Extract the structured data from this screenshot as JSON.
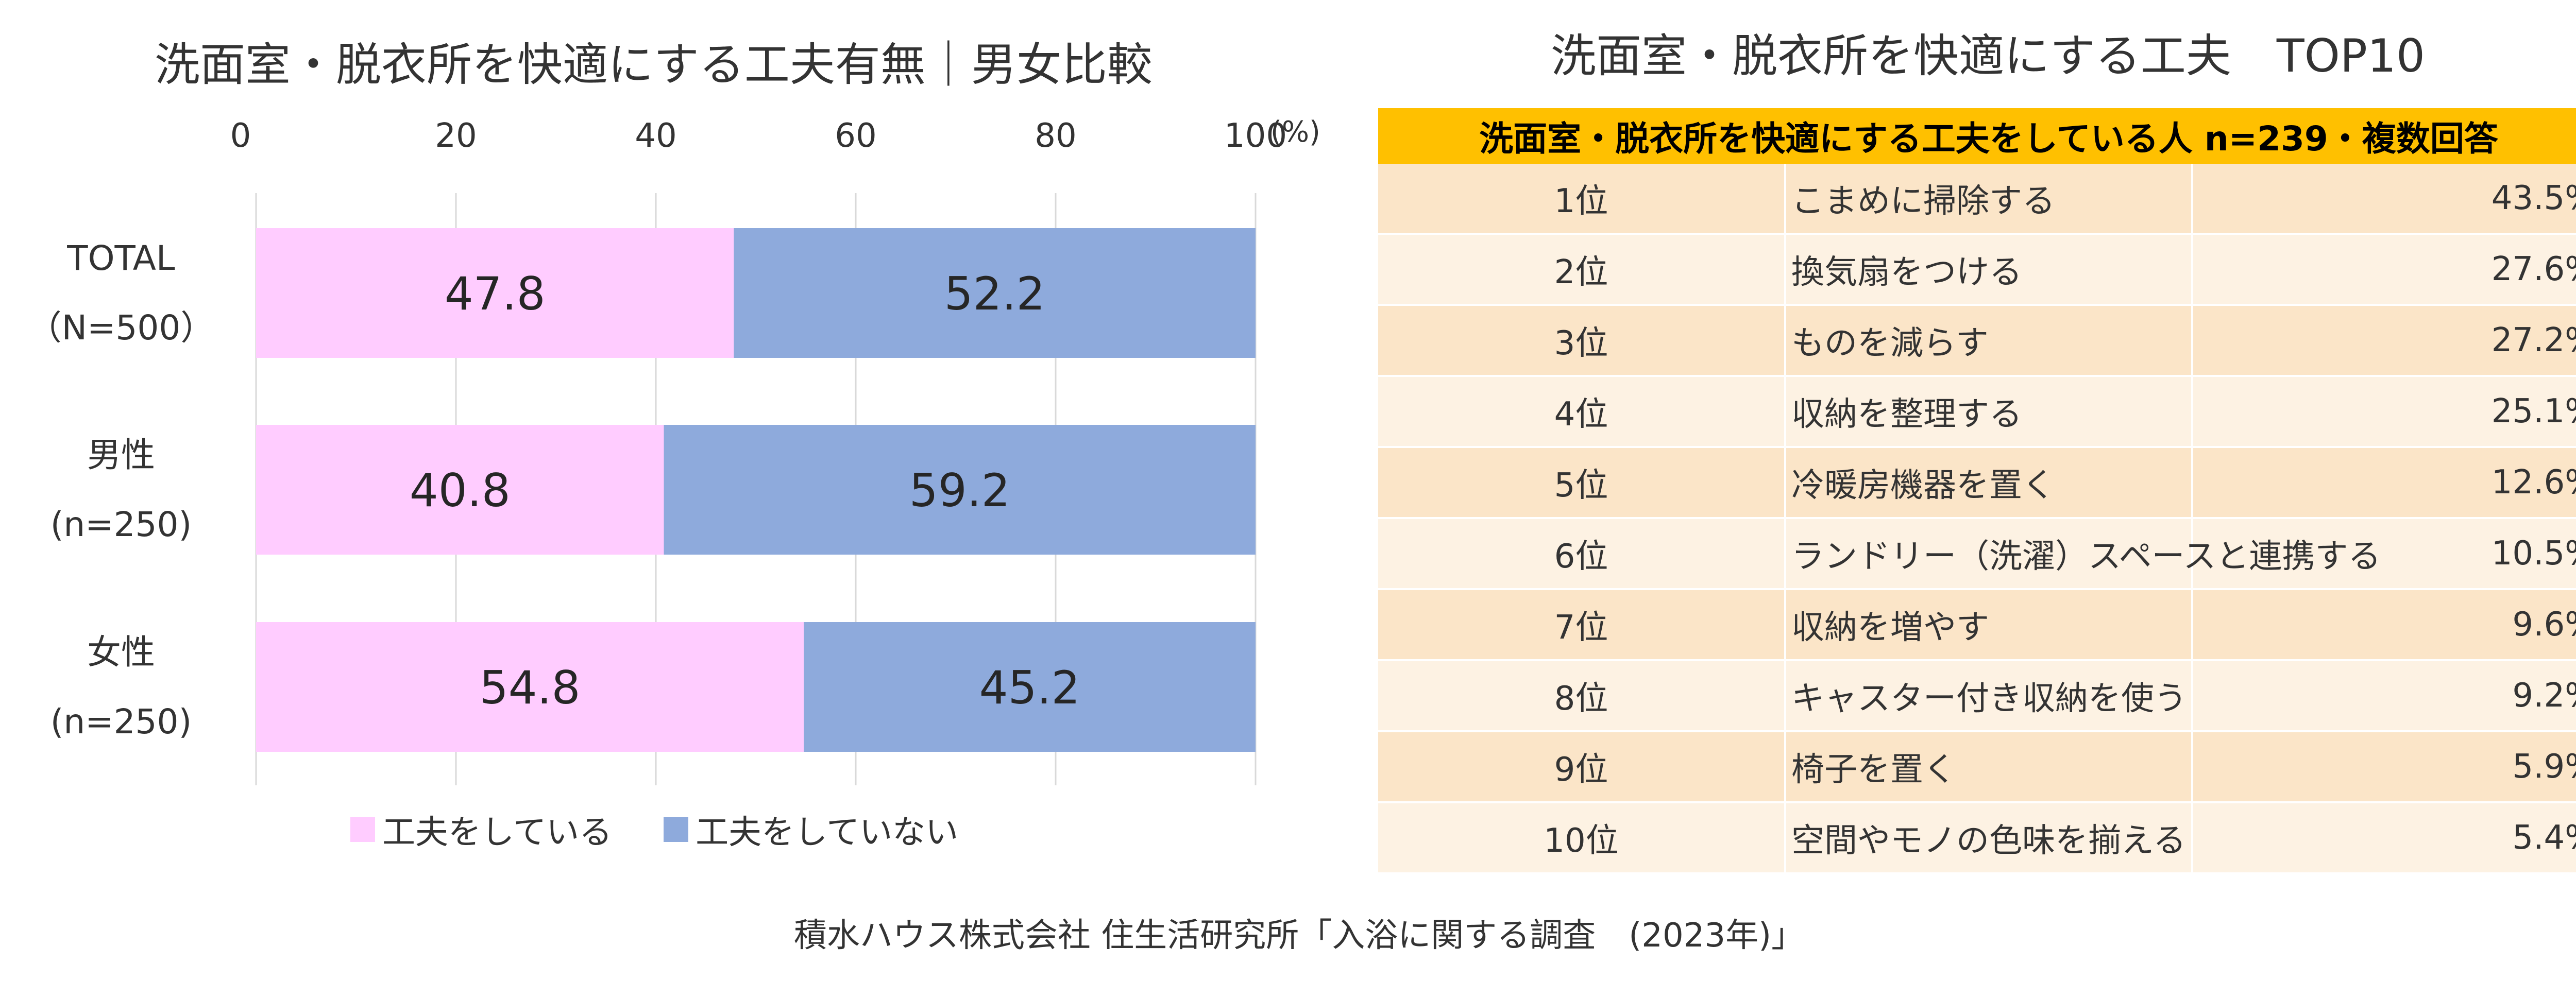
{
  "chart_data": {
    "type": "bar",
    "orientation": "horizontal-stacked",
    "title": "洗面室・脱衣所を快適にする工夫有無｜男女比較",
    "axis_unit": "(%)",
    "xlim": [
      0,
      100
    ],
    "xticks": [
      "0",
      "20",
      "40",
      "60",
      "80",
      "100"
    ],
    "categories": [
      {
        "line1": "TOTAL",
        "line2": "（N=500）"
      },
      {
        "line1": "男性",
        "line2": "(n=250)"
      },
      {
        "line1": "女性",
        "line2": "(n=250)"
      }
    ],
    "series": [
      {
        "name": "工夫をしている",
        "color": "#ffccff",
        "values": [
          47.8,
          40.8,
          54.8
        ]
      },
      {
        "name": "工夫をしていない",
        "color": "#8eaadc",
        "values": [
          52.2,
          59.2,
          45.2
        ]
      }
    ]
  },
  "table": {
    "title": "洗面室・脱衣所を快適にする工夫　TOP10",
    "header": "洗面室・脱衣所を快適にする工夫をしている人 n=239・複数回答",
    "rows": [
      {
        "rank": "1位",
        "item": "こまめに掃除する",
        "pct": "43.5%"
      },
      {
        "rank": "2位",
        "item": "換気扇をつける",
        "pct": "27.6%"
      },
      {
        "rank": "3位",
        "item": "ものを減らす",
        "pct": "27.2%"
      },
      {
        "rank": "4位",
        "item": "収納を整理する",
        "pct": "25.1%"
      },
      {
        "rank": "5位",
        "item": "冷暖房機器を置く",
        "pct": "12.6%"
      },
      {
        "rank": "6位",
        "item": "ランドリー（洗濯）スペースと連携する",
        "pct": "10.5%"
      },
      {
        "rank": "7位",
        "item": "収納を増やす",
        "pct": "9.6%"
      },
      {
        "rank": "8位",
        "item": "キャスター付き収納を使う",
        "pct": "9.2%"
      },
      {
        "rank": "9位",
        "item": "椅子を置く",
        "pct": "5.9%"
      },
      {
        "rank": "10位",
        "item": "空間やモノの色味を揃える",
        "pct": "5.4%"
      }
    ]
  },
  "source": "積水ハウス株式会社 住生活研究所「入浴に関する調査　(2023年)」"
}
